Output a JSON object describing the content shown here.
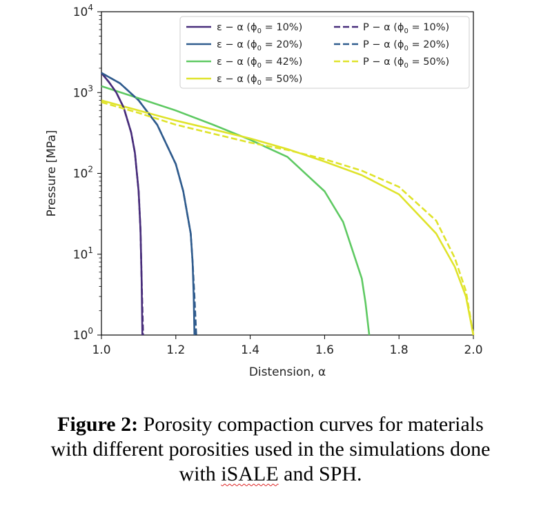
{
  "chart_data": {
    "type": "line",
    "xlabel": "Distension, α",
    "ylabel": "Pressure [MPa]",
    "xlim": [
      1.0,
      2.0
    ],
    "ylim": [
      1,
      10000
    ],
    "yscale": "log",
    "xticks": [
      "1.0",
      "1.2",
      "1.4",
      "1.6",
      "1.8",
      "2.0"
    ],
    "yticks": [
      {
        "base": "10",
        "exp": "0"
      },
      {
        "base": "10",
        "exp": "1"
      },
      {
        "base": "10",
        "exp": "2"
      },
      {
        "base": "10",
        "exp": "3"
      },
      {
        "base": "10",
        "exp": "4"
      }
    ],
    "legend_position": "top-right",
    "series": [
      {
        "name": "ε − α (ϕ₀ = 10%)",
        "legend": {
          "pre": "ε − α (ϕ",
          "sub": "0",
          "post": " = 10%)"
        },
        "color": "#472c7a",
        "style": "solid",
        "x": [
          1.0,
          1.02,
          1.04,
          1.06,
          1.08,
          1.09,
          1.1,
          1.105,
          1.108,
          1.11
        ],
        "y": [
          1750,
          1350,
          1000,
          650,
          320,
          180,
          60,
          20,
          5,
          1
        ]
      },
      {
        "name": "ε − α (ϕ₀ = 20%)",
        "legend": {
          "pre": "ε − α (ϕ",
          "sub": "0",
          "post": " = 20%)"
        },
        "color": "#2f5b8d",
        "style": "solid",
        "x": [
          1.0,
          1.05,
          1.1,
          1.15,
          1.2,
          1.22,
          1.24,
          1.245,
          1.248,
          1.25
        ],
        "y": [
          1750,
          1300,
          800,
          400,
          130,
          60,
          18,
          8,
          3,
          1
        ]
      },
      {
        "name": "ε − α (ϕ₀ = 42%)",
        "legend": {
          "pre": "ε − α (ϕ",
          "sub": "0",
          "post": " = 42%)"
        },
        "color": "#5ec962",
        "style": "solid",
        "x": [
          1.0,
          1.1,
          1.2,
          1.3,
          1.4,
          1.5,
          1.6,
          1.65,
          1.7,
          1.71,
          1.72
        ],
        "y": [
          1200,
          850,
          600,
          400,
          260,
          160,
          60,
          25,
          5,
          2.5,
          1
        ]
      },
      {
        "name": "ε − α (ϕ₀ = 50%)",
        "legend": {
          "pre": "ε − α (ϕ",
          "sub": "0",
          "post": " = 50%)"
        },
        "color": "#dfe32a",
        "style": "solid",
        "x": [
          1.0,
          1.1,
          1.2,
          1.3,
          1.4,
          1.5,
          1.6,
          1.7,
          1.8,
          1.9,
          1.95,
          1.98,
          2.0
        ],
        "y": [
          800,
          600,
          450,
          350,
          270,
          200,
          140,
          95,
          55,
          18,
          7,
          3,
          1
        ]
      },
      {
        "name": "P − α (ϕ₀ = 10%)",
        "legend": {
          "pre": "P − α (ϕ",
          "sub": "0",
          "post": " = 10%)"
        },
        "color": "#472c7a",
        "style": "dashed",
        "x": [
          1.0,
          1.02,
          1.04,
          1.06,
          1.08,
          1.09,
          1.1,
          1.105,
          1.108,
          1.112
        ],
        "y": [
          1750,
          1350,
          1000,
          650,
          320,
          180,
          60,
          20,
          5,
          1
        ]
      },
      {
        "name": "P − α (ϕ₀ = 20%)",
        "legend": {
          "pre": "P − α (ϕ",
          "sub": "0",
          "post": " = 20%)"
        },
        "color": "#2f5b8d",
        "style": "dashed",
        "x": [
          1.0,
          1.05,
          1.1,
          1.15,
          1.2,
          1.22,
          1.24,
          1.245,
          1.25,
          1.255
        ],
        "y": [
          1750,
          1300,
          800,
          400,
          130,
          60,
          18,
          8,
          3,
          1
        ]
      },
      {
        "name": "P − α (ϕ₀ = 50%)",
        "legend": {
          "pre": "P − α (ϕ",
          "sub": "0",
          "post": " = 50%)"
        },
        "color": "#dfe32a",
        "style": "dashed",
        "x": [
          1.0,
          1.1,
          1.2,
          1.3,
          1.4,
          1.5,
          1.6,
          1.7,
          1.8,
          1.9,
          1.95,
          1.98,
          2.0
        ],
        "y": [
          760,
          560,
          400,
          310,
          240,
          195,
          150,
          108,
          68,
          26,
          9,
          3.5,
          1
        ]
      }
    ]
  },
  "caption": {
    "label": "Figure 2:",
    "line1": " Porosity compaction curves for materials",
    "line2": "with different porosities used in the simulations done",
    "line3_pre": "with ",
    "line3_word": "iSALE",
    "line3_post": " and SPH."
  }
}
